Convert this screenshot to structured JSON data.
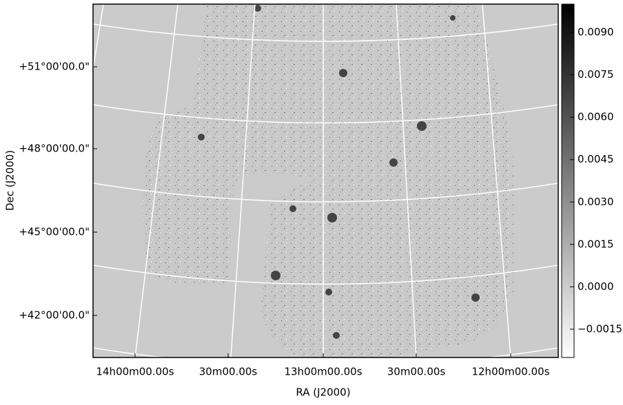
{
  "chart_data": {
    "type": "image",
    "xlabel": "RA (J2000)",
    "ylabel": "Dec (J2000)",
    "x_tick_labels": [
      "14h00m00.00s",
      "30m00.00s",
      "13h00m00.00s",
      "30m00.00s",
      "12h00m00.00s"
    ],
    "y_tick_labels": [
      "+51°00'00.0\"",
      "+48°00'00.0\"",
      "+45°00'00.0\"",
      "+42°00'00.0\""
    ],
    "colorbar": {
      "clim": [
        -0.0025,
        0.01
      ],
      "ticks": [
        {
          "value": 0.009,
          "label": "0.0090"
        },
        {
          "value": 0.0075,
          "label": "0.0075"
        },
        {
          "value": 0.006,
          "label": "0.0060"
        },
        {
          "value": 0.0045,
          "label": "0.0045"
        },
        {
          "value": 0.003,
          "label": "0.0030"
        },
        {
          "value": 0.0015,
          "label": "0.0015"
        },
        {
          "value": 0,
          "label": "0.0000"
        },
        {
          "value": -0.0015,
          "label": "−0.0015"
        }
      ]
    },
    "grid": true
  }
}
